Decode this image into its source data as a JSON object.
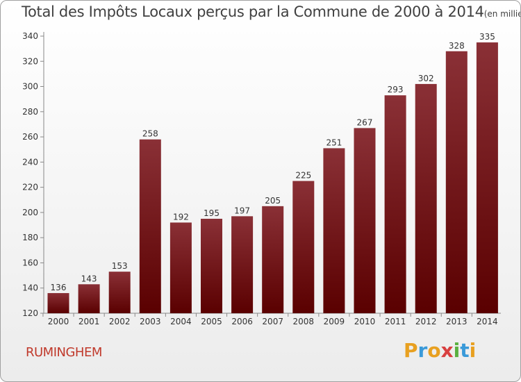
{
  "chart_data": {
    "type": "bar",
    "title": "Total des Impôts Locaux perçus par la Commune de 2000 à 2014",
    "unit_label": "(en milliers d'€)",
    "categories": [
      "2000",
      "2001",
      "2002",
      "2003",
      "2004",
      "2005",
      "2006",
      "2007",
      "2008",
      "2009",
      "2010",
      "2011",
      "2012",
      "2013",
      "2014"
    ],
    "values": [
      136,
      143,
      153,
      258,
      192,
      195,
      197,
      205,
      225,
      251,
      267,
      293,
      302,
      328,
      335
    ],
    "ylim": [
      120,
      340
    ],
    "yticks": [
      120,
      140,
      160,
      180,
      200,
      220,
      240,
      260,
      280,
      300,
      320,
      340
    ],
    "xlabel": "",
    "ylabel": "",
    "grid": false,
    "bar_color_top": "#8a3036",
    "bar_color_bottom": "#5a0000"
  },
  "commune": "RUMINGHEM",
  "logo": {
    "letters": [
      "P",
      "r",
      "o",
      "x",
      "i",
      "t",
      "i"
    ],
    "colors": [
      "#e8a020",
      "#3a9ad9",
      "#e8a020",
      "#d84040",
      "#5ab040",
      "#3a9ad9",
      "#e8a020"
    ]
  }
}
